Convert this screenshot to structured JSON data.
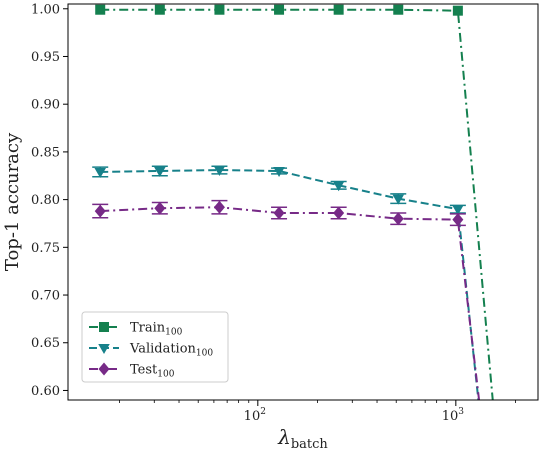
{
  "chart_data": {
    "type": "line",
    "xscale": "log",
    "xlim": [
      11,
      2600
    ],
    "ylim": [
      0.59,
      1.005
    ],
    "xlabel": {
      "main": "λ",
      "sub": "batch"
    },
    "ylabel": "Top-1 accuracy",
    "yticks": [
      0.6,
      0.65,
      0.7,
      0.75,
      0.8,
      0.85,
      0.9,
      0.95,
      1.0
    ],
    "ytick_labels": [
      "0.60",
      "0.65",
      "0.70",
      "0.75",
      "0.80",
      "0.85",
      "0.90",
      "0.95",
      "1.00"
    ],
    "xticks_major": [
      {
        "value": 100,
        "base": "10",
        "exp": "2"
      },
      {
        "value": 1000,
        "base": "10",
        "exp": "3"
      }
    ],
    "xticks_minor": [
      20,
      30,
      40,
      50,
      60,
      70,
      80,
      90,
      200,
      300,
      400,
      500,
      600,
      700,
      800,
      900,
      2000
    ],
    "grid": false,
    "legend_position": "bottom-left",
    "series": [
      {
        "name": "Train",
        "sub": "100",
        "color": "#14804f",
        "marker": "square",
        "dash": "dashdot",
        "x": [
          16,
          32,
          64,
          128,
          256,
          512,
          1024,
          1536
        ],
        "y": [
          0.999,
          0.999,
          0.999,
          0.999,
          0.999,
          0.999,
          0.998,
          0.59
        ],
        "err": [
          0,
          0,
          0,
          0,
          0,
          0,
          0,
          0
        ],
        "markers_count": 7
      },
      {
        "name": "Validation",
        "sub": "100",
        "color": "#17818a",
        "marker": "triangle-down",
        "dash": "dashed",
        "x": [
          16,
          32,
          64,
          128,
          256,
          512,
          1024,
          1300
        ],
        "y": [
          0.829,
          0.83,
          0.831,
          0.83,
          0.815,
          0.801,
          0.79,
          0.59
        ],
        "err": [
          0.005,
          0.005,
          0.004,
          0.003,
          0.004,
          0.005,
          0.004,
          0
        ],
        "markers_count": 7
      },
      {
        "name": "Test",
        "sub": "100",
        "color": "#772a87",
        "marker": "diamond",
        "dash": "dashdot",
        "x": [
          16,
          32,
          64,
          128,
          256,
          512,
          1024,
          1310
        ],
        "y": [
          0.788,
          0.791,
          0.792,
          0.786,
          0.786,
          0.78,
          0.779,
          0.59
        ],
        "err": [
          0.007,
          0.006,
          0.007,
          0.006,
          0.006,
          0.006,
          0.006,
          0
        ],
        "markers_count": 7
      }
    ]
  }
}
